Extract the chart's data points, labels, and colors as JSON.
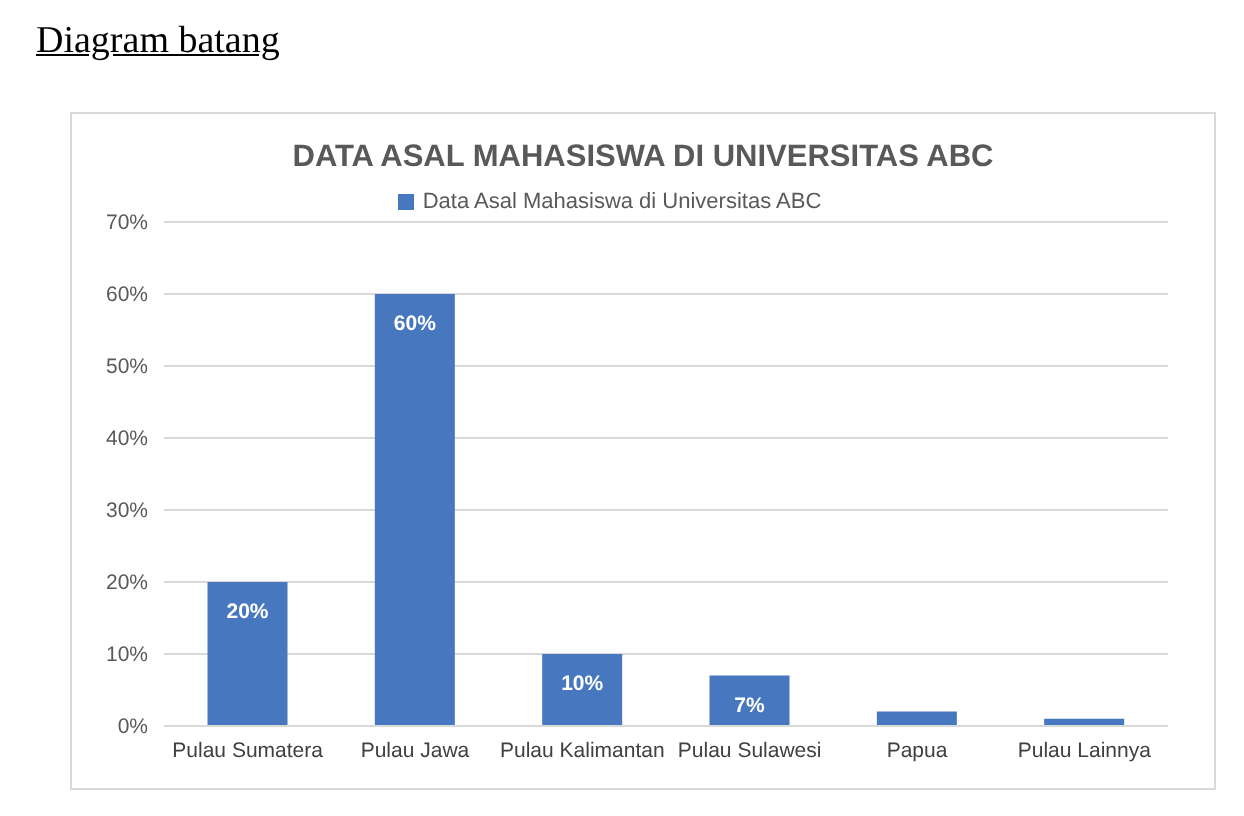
{
  "chart_data": {
    "type": "bar",
    "title": "DATA ASAL MAHASISWA DI UNIVERSITAS ABC",
    "annotations": [
      "Diagram batang"
    ],
    "categories": [
      "Pulau Sumatera",
      "Pulau Jawa",
      "Pulau Kalimantan",
      "Pulau Sulawesi",
      "Papua",
      "Pulau Lainnya"
    ],
    "series": [
      {
        "name": "Data Asal Mahasiswa di Universitas ABC",
        "color": "#4677bf",
        "values": [
          20,
          60,
          10,
          7,
          2,
          1
        ],
        "value_labels": [
          "20%",
          "60%",
          "10%",
          "7%",
          null,
          null
        ]
      }
    ],
    "ylim": [
      0,
      70
    ],
    "yticks": [
      {
        "value": 0,
        "label": "0%"
      },
      {
        "value": 10,
        "label": "10%"
      },
      {
        "value": 20,
        "label": "20%"
      },
      {
        "value": 30,
        "label": "30%"
      },
      {
        "value": 40,
        "label": "40%"
      },
      {
        "value": 50,
        "label": "50%"
      },
      {
        "value": 60,
        "label": "60%"
      },
      {
        "value": 70,
        "label": "70%"
      }
    ],
    "grid": "y",
    "legend": "top"
  }
}
